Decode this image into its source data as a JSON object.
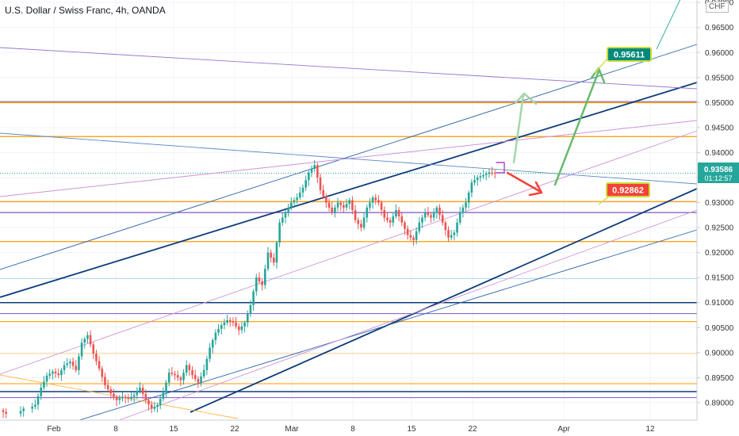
{
  "header": {
    "title": "U.S. Dollar / Swiss Franc, 4h, OANDA",
    "currency": "CHF"
  },
  "colors": {
    "up": "#26a69a",
    "down": "#ef5350",
    "orange": "#ff9800",
    "purple": "#7e57c2",
    "navy": "#0d3c7a",
    "blue": "#2962a8",
    "violet": "#ce93d8",
    "green": "#66bb6a",
    "teal_badge": "#00897b",
    "red_badge": "#f44336",
    "price_badge": "#26a69a"
  },
  "price_badge": {
    "value": "0.93586",
    "countdown": "01:12:57"
  },
  "targets": [
    {
      "label": "0.95611",
      "kind": "up"
    },
    {
      "label": "0.92862",
      "kind": "down"
    }
  ],
  "chart_data": {
    "type": "candlestick",
    "title": "U.S. Dollar / Swiss Franc, 4h, OANDA",
    "ylim": [
      0.8865,
      0.9705
    ],
    "y_ticks": [
      "0.97000",
      "0.96500",
      "0.96000",
      "0.95500",
      "0.95000",
      "0.94500",
      "0.94000",
      "0.93500",
      "0.93000",
      "0.92500",
      "0.92000",
      "0.91500",
      "0.91000",
      "0.90500",
      "0.90000",
      "0.89500",
      "0.89000"
    ],
    "x_ticks": [
      "Feb",
      "8",
      "15",
      "22",
      "Mar",
      "8",
      "15",
      "22",
      "Apr",
      "12"
    ],
    "grid": true,
    "path": [
      [
        0,
        0.8885
      ],
      [
        6,
        0.8878
      ],
      [
        10,
        0.8888
      ],
      [
        12,
        0.8896
      ],
      [
        14,
        0.893
      ],
      [
        16,
        0.8954
      ],
      [
        18,
        0.8962
      ],
      [
        20,
        0.8955
      ],
      [
        22,
        0.8975
      ],
      [
        24,
        0.8982
      ],
      [
        26,
        0.8965
      ],
      [
        28,
        0.902
      ],
      [
        30,
        0.9035
      ],
      [
        32,
        0.8998
      ],
      [
        34,
        0.8968
      ],
      [
        36,
        0.8935
      ],
      [
        38,
        0.8918
      ],
      [
        40,
        0.8905
      ],
      [
        42,
        0.8912
      ],
      [
        44,
        0.8908
      ],
      [
        46,
        0.8915
      ],
      [
        48,
        0.893
      ],
      [
        50,
        0.8905
      ],
      [
        52,
        0.8888
      ],
      [
        54,
        0.8895
      ],
      [
        56,
        0.892
      ],
      [
        58,
        0.896
      ],
      [
        60,
        0.8955
      ],
      [
        62,
        0.8945
      ],
      [
        64,
        0.8975
      ],
      [
        66,
        0.8955
      ],
      [
        68,
        0.894
      ],
      [
        70,
        0.8965
      ],
      [
        72,
        0.901
      ],
      [
        74,
        0.904
      ],
      [
        76,
        0.9055
      ],
      [
        78,
        0.9065
      ],
      [
        80,
        0.906
      ],
      [
        82,
        0.9045
      ],
      [
        84,
        0.906
      ],
      [
        86,
        0.9095
      ],
      [
        88,
        0.915
      ],
      [
        90,
        0.9135
      ],
      [
        92,
        0.92
      ],
      [
        94,
        0.918
      ],
      [
        96,
        0.926
      ],
      [
        98,
        0.928
      ],
      [
        100,
        0.93
      ],
      [
        102,
        0.931
      ],
      [
        104,
        0.933
      ],
      [
        106,
        0.936
      ],
      [
        108,
        0.9375
      ],
      [
        110,
        0.9325
      ],
      [
        112,
        0.93
      ],
      [
        114,
        0.928
      ],
      [
        116,
        0.93
      ],
      [
        118,
        0.929
      ],
      [
        120,
        0.9305
      ],
      [
        122,
        0.9265
      ],
      [
        124,
        0.925
      ],
      [
        126,
        0.929
      ],
      [
        128,
        0.931
      ],
      [
        130,
        0.93
      ],
      [
        132,
        0.927
      ],
      [
        134,
        0.926
      ],
      [
        136,
        0.9285
      ],
      [
        138,
        0.926
      ],
      [
        140,
        0.9235
      ],
      [
        142,
        0.9225
      ],
      [
        144,
        0.926
      ],
      [
        146,
        0.928
      ],
      [
        148,
        0.927
      ],
      [
        150,
        0.929
      ],
      [
        152,
        0.926
      ],
      [
        154,
        0.923
      ],
      [
        156,
        0.924
      ],
      [
        158,
        0.928
      ],
      [
        160,
        0.93
      ],
      [
        162,
        0.934
      ],
      [
        164,
        0.935
      ],
      [
        166,
        0.9355
      ],
      [
        168,
        0.936
      ],
      [
        170,
        0.9358
      ]
    ]
  }
}
